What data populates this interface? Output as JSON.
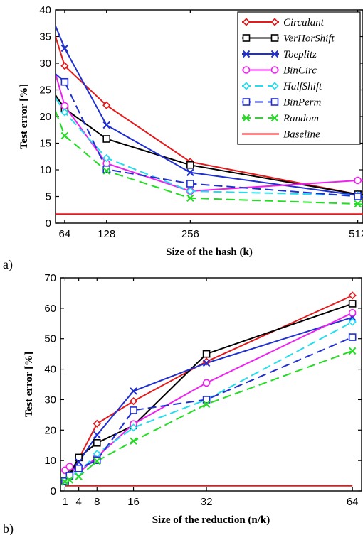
{
  "chart_data": [
    {
      "type": "line",
      "panel_label": "a)",
      "xlabel": "Size of the hash (k)",
      "ylabel": "Test error [%]",
      "xlim": [
        50,
        520
      ],
      "ylim": [
        0,
        40
      ],
      "xticks": [
        64,
        128,
        256,
        512
      ],
      "yticks": [
        0,
        5,
        10,
        15,
        20,
        25,
        30,
        35,
        40
      ],
      "x": [
        64,
        128,
        256,
        512
      ],
      "legend_position": "top-right",
      "series": [
        {
          "name": "Circulant",
          "color": "#e41a1c",
          "dash": "solid",
          "marker": "diamond",
          "values": [
            29.5,
            22.1,
            11.5,
            5.4
          ],
          "start": [
            50,
            35.0
          ],
          "end": [
            520,
            5.3
          ]
        },
        {
          "name": "VerHorShift",
          "color": "#000000",
          "dash": "solid",
          "marker": "square",
          "values": [
            21.5,
            15.8,
            10.9,
            5.4
          ],
          "start": [
            50,
            24.0
          ],
          "end": [
            520,
            5.3
          ]
        },
        {
          "name": "Toeplitz",
          "color": "#1f2fd0",
          "dash": "solid",
          "marker": "x",
          "values": [
            32.8,
            18.4,
            9.5,
            5.2
          ],
          "start": [
            50,
            37.0
          ],
          "end": [
            520,
            5.0
          ]
        },
        {
          "name": "BinCirc",
          "color": "#ee22ee",
          "dash": "solid",
          "marker": "circle",
          "values": [
            22.0,
            11.2,
            6.0,
            8.0
          ],
          "start": [
            50,
            28.0
          ],
          "end": [
            520,
            8.0
          ]
        },
        {
          "name": "HalfShift",
          "color": "#22ddee",
          "dash": "dashed",
          "marker": "diamond-open",
          "values": [
            20.8,
            12.2,
            6.0,
            5.2
          ],
          "start": [
            50,
            23.5
          ],
          "end": [
            520,
            5.0
          ]
        },
        {
          "name": "BinPerm",
          "color": "#1f2fd0",
          "dash": "dashed",
          "marker": "square",
          "values": [
            26.5,
            10.1,
            7.4,
            5.0
          ],
          "start": [
            50,
            28.0
          ],
          "end": [
            520,
            4.9
          ]
        },
        {
          "name": "Random",
          "color": "#22dd22",
          "dash": "dashed",
          "marker": "x",
          "values": [
            16.4,
            9.8,
            4.7,
            3.6
          ],
          "start": [
            50,
            21.0
          ],
          "end": [
            520,
            3.5
          ]
        },
        {
          "name": "Baseline",
          "color": "#e41a1c",
          "dash": "solid",
          "marker": "none",
          "values": [
            1.7,
            1.7,
            1.7,
            1.7
          ],
          "start": [
            50,
            1.7
          ],
          "end": [
            520,
            1.7
          ]
        }
      ]
    },
    {
      "type": "line",
      "panel_label": "b)",
      "xlabel": "Size of the reduction (n/k)",
      "ylabel": "Test error [%]",
      "xlim": [
        0,
        66
      ],
      "ylim": [
        0,
        70
      ],
      "xticks": [
        1,
        4,
        8,
        16,
        32,
        64
      ],
      "yticks": [
        0,
        10,
        20,
        30,
        40,
        50,
        60,
        70
      ],
      "x": [
        1,
        2,
        4,
        8,
        16,
        32,
        64
      ],
      "series": [
        {
          "name": "Circulant",
          "color": "#e41a1c",
          "dash": "solid",
          "marker": "diamond",
          "values": [
            3.0,
            5.5,
            10.5,
            22.1,
            29.5,
            42.5,
            64.2
          ]
        },
        {
          "name": "VerHorShift",
          "color": "#000000",
          "dash": "solid",
          "marker": "square",
          "values": [
            3.2,
            5.4,
            11.0,
            15.8,
            21.5,
            45.0,
            61.5
          ]
        },
        {
          "name": "Toeplitz",
          "color": "#1f2fd0",
          "dash": "solid",
          "marker": "x",
          "values": [
            3.0,
            5.0,
            9.5,
            18.4,
            32.8,
            42.0,
            57.0
          ]
        },
        {
          "name": "BinCirc",
          "color": "#ee22ee",
          "dash": "solid",
          "marker": "circle",
          "values": [
            6.8,
            8.0,
            6.0,
            11.2,
            22.0,
            35.5,
            58.5
          ]
        },
        {
          "name": "HalfShift",
          "color": "#22ddee",
          "dash": "dashed",
          "marker": "diamond-open",
          "values": [
            3.0,
            5.2,
            6.0,
            12.2,
            20.8,
            30.0,
            55.5
          ]
        },
        {
          "name": "BinPerm",
          "color": "#1f2fd0",
          "dash": "dashed",
          "marker": "square",
          "values": [
            3.2,
            5.0,
            7.4,
            10.1,
            26.5,
            30.0,
            50.5
          ]
        },
        {
          "name": "Random",
          "color": "#22dd22",
          "dash": "dashed",
          "marker": "x",
          "values": [
            3.0,
            3.6,
            4.7,
            9.8,
            16.4,
            28.5,
            46.0
          ]
        },
        {
          "name": "Baseline",
          "color": "#e41a1c",
          "dash": "solid",
          "marker": "none",
          "values": [
            1.7,
            1.7,
            1.7,
            1.7,
            1.7,
            1.7,
            1.7
          ]
        }
      ]
    }
  ]
}
